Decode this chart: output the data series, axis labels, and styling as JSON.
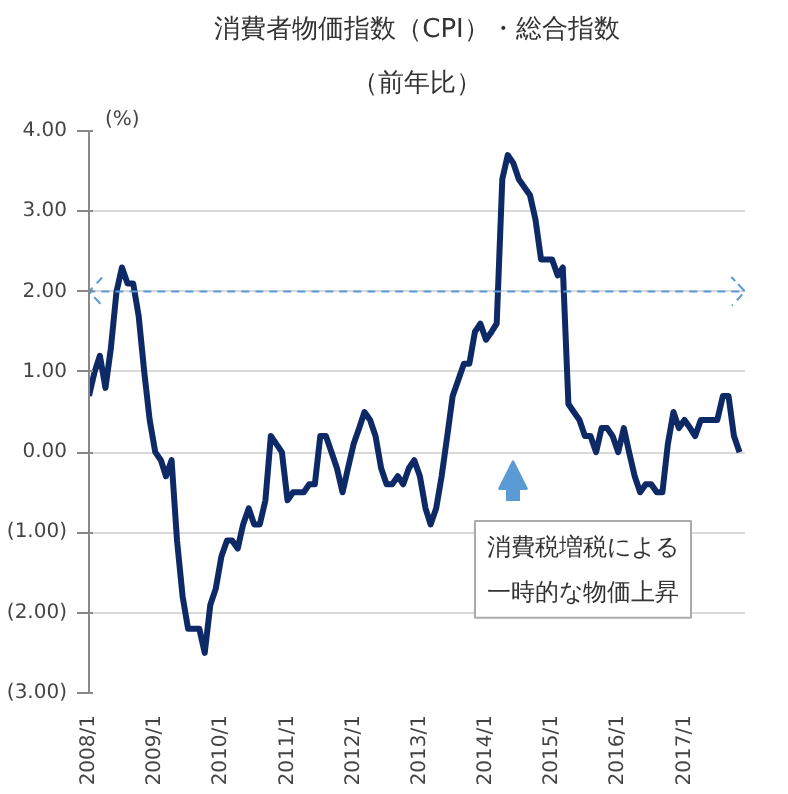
{
  "chart_data": {
    "type": "line",
    "title": "消費者物価指数（CPI）・総合指数",
    "subtitle": "（前年比）",
    "ylabel": "(%)",
    "x": [
      "2008-01",
      "2008-02",
      "2008-03",
      "2008-04",
      "2008-05",
      "2008-06",
      "2008-07",
      "2008-08",
      "2008-09",
      "2008-10",
      "2008-11",
      "2008-12",
      "2009-01",
      "2009-02",
      "2009-03",
      "2009-04",
      "2009-05",
      "2009-06",
      "2009-07",
      "2009-08",
      "2009-09",
      "2009-10",
      "2009-11",
      "2009-12",
      "2010-01",
      "2010-02",
      "2010-03",
      "2010-04",
      "2010-05",
      "2010-06",
      "2010-07",
      "2010-08",
      "2010-09",
      "2010-10",
      "2010-11",
      "2010-12",
      "2011-01",
      "2011-02",
      "2011-03",
      "2011-04",
      "2011-05",
      "2011-06",
      "2011-07",
      "2011-08",
      "2011-09",
      "2011-10",
      "2011-11",
      "2011-12",
      "2012-01",
      "2012-02",
      "2012-03",
      "2012-04",
      "2012-05",
      "2012-06",
      "2012-07",
      "2012-08",
      "2012-09",
      "2012-10",
      "2012-11",
      "2012-12",
      "2013-01",
      "2013-02",
      "2013-03",
      "2013-04",
      "2013-05",
      "2013-06",
      "2013-07",
      "2013-08",
      "2013-09",
      "2013-10",
      "2013-11",
      "2013-12",
      "2014-01",
      "2014-02",
      "2014-03",
      "2014-04",
      "2014-05",
      "2014-06",
      "2014-07",
      "2014-08",
      "2014-09",
      "2014-10",
      "2014-11",
      "2014-12",
      "2015-01",
      "2015-02",
      "2015-03",
      "2015-04",
      "2015-05",
      "2015-06",
      "2015-07",
      "2015-08",
      "2015-09",
      "2015-10",
      "2015-11",
      "2015-12",
      "2016-01",
      "2016-02",
      "2016-03",
      "2016-04",
      "2016-05",
      "2016-06",
      "2016-07",
      "2016-08",
      "2016-09",
      "2016-10",
      "2016-11",
      "2016-12",
      "2017-01",
      "2017-02",
      "2017-03",
      "2017-04",
      "2017-05",
      "2017-06",
      "2017-07",
      "2017-08",
      "2017-09",
      "2017-10",
      "2017-11"
    ],
    "series": [
      {
        "color": "#0d2a66",
        "values": [
          0.7,
          1.0,
          1.2,
          0.8,
          1.3,
          2.0,
          2.3,
          2.1,
          2.1,
          1.7,
          1.0,
          0.4,
          0.0,
          -0.1,
          -0.3,
          -0.1,
          -1.1,
          -1.8,
          -2.2,
          -2.2,
          -2.2,
          -2.5,
          -1.9,
          -1.7,
          -1.3,
          -1.1,
          -1.1,
          -1.2,
          -0.9,
          -0.7,
          -0.9,
          -0.9,
          -0.6,
          0.2,
          0.1,
          0.0,
          -0.6,
          -0.5,
          -0.5,
          -0.5,
          -0.4,
          -0.4,
          0.2,
          0.2,
          0.0,
          -0.2,
          -0.5,
          -0.2,
          0.1,
          0.3,
          0.5,
          0.4,
          0.2,
          -0.2,
          -0.4,
          -0.4,
          -0.3,
          -0.4,
          -0.2,
          -0.1,
          -0.3,
          -0.7,
          -0.9,
          -0.7,
          -0.3,
          0.2,
          0.7,
          0.9,
          1.1,
          1.1,
          1.5,
          1.6,
          1.4,
          1.5,
          1.6,
          3.4,
          3.7,
          3.6,
          3.4,
          3.3,
          3.2,
          2.9,
          2.4,
          2.4,
          2.4,
          2.2,
          2.3,
          0.6,
          0.5,
          0.4,
          0.2,
          0.2,
          0.0,
          0.3,
          0.3,
          0.2,
          0.0,
          0.3,
          0.0,
          -0.3,
          -0.5,
          -0.4,
          -0.4,
          -0.5,
          -0.5,
          0.1,
          0.5,
          0.3,
          0.4,
          0.3,
          0.2,
          0.4,
          0.4,
          0.4,
          0.4,
          0.7,
          0.7,
          0.2,
          0.0
        ]
      }
    ],
    "xlim": [
      "2008-01",
      "2017-12"
    ],
    "xticks": [
      {
        "value": "2008-01",
        "label": "2008/1"
      },
      {
        "value": "2009-01",
        "label": "2009/1"
      },
      {
        "value": "2010-01",
        "label": "2010/1"
      },
      {
        "value": "2011-01",
        "label": "2011/1"
      },
      {
        "value": "2012-01",
        "label": "2012/1"
      },
      {
        "value": "2013-01",
        "label": "2013/1"
      },
      {
        "value": "2014-01",
        "label": "2014/1"
      },
      {
        "value": "2015-01",
        "label": "2015/1"
      },
      {
        "value": "2016-01",
        "label": "2016/1"
      },
      {
        "value": "2017-01",
        "label": "2017/1"
      }
    ],
    "ylim": [
      -3,
      4
    ],
    "yticks": [
      {
        "value": -3,
        "label": "(3.00)"
      },
      {
        "value": -2,
        "label": "(2.00)"
      },
      {
        "value": -1,
        "label": "(1.00)"
      },
      {
        "value": 0,
        "label": "0.00"
      },
      {
        "value": 1,
        "label": "1.00"
      },
      {
        "value": 2,
        "label": "2.00"
      },
      {
        "value": 3,
        "label": "3.00"
      },
      {
        "value": 4,
        "label": "4.00"
      }
    ],
    "grid": "y",
    "line_style": "solid",
    "ref_lines": [
      {
        "axis": "y",
        "value": 2,
        "color": "#5b9bd5",
        "line_style": "dashed"
      }
    ],
    "annotations": [
      "消費税増税による一時的な物価上昇"
    ]
  }
}
